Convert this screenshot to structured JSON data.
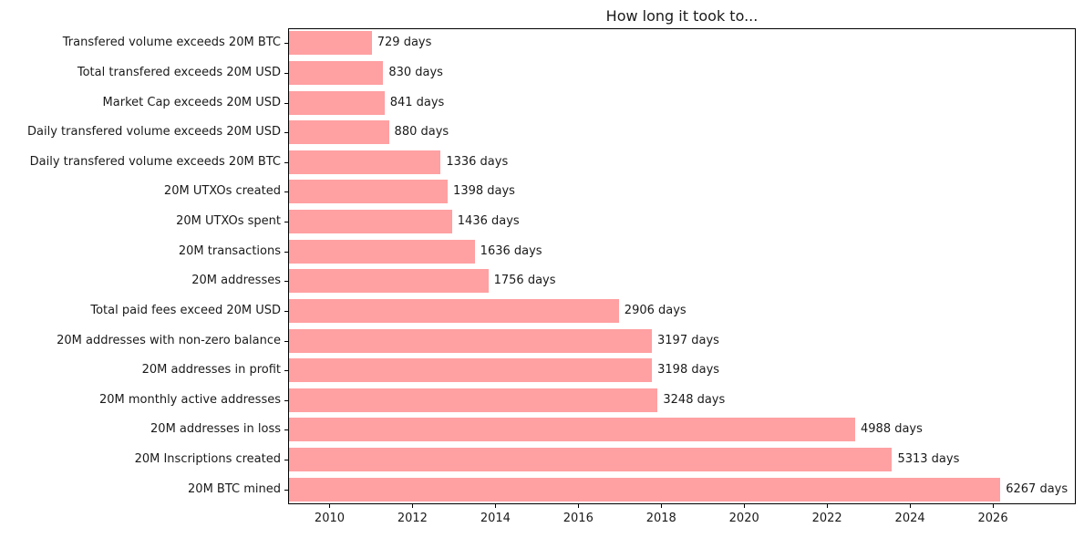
{
  "chart_data": {
    "type": "bar",
    "orientation": "horizontal",
    "title": "How long it took to...",
    "xlabel": "",
    "ylabel": "",
    "grid": false,
    "legend": false,
    "bar_color": "#ffa0a2",
    "text_color": "#1a1a1a",
    "spine_color": "#000000",
    "value_suffix": " days",
    "categories": [
      "Transfered volume exceeds 20M BTC",
      "Total transfered exceeds 20M USD",
      "Market Cap exceeds 20M USD",
      "Daily transfered volume exceeds 20M USD",
      "Daily transfered volume exceeds 20M BTC",
      "20M UTXOs created",
      "20M UTXOs spent",
      "20M transactions",
      "20M addresses",
      "Total paid fees exceed 20M USD",
      "20M addresses with non-zero balance",
      "20M addresses in profit",
      "20M monthly active addresses",
      "20M addresses in loss",
      "20M Inscriptions created",
      "20M BTC mined"
    ],
    "values_days": [
      729,
      830,
      841,
      880,
      1336,
      1398,
      1436,
      1636,
      1756,
      2906,
      3197,
      3198,
      3248,
      4988,
      5313,
      6267
    ],
    "value_labels": [
      "729 days",
      "830 days",
      "841 days",
      "880 days",
      "1336 days",
      "1398 days",
      "1436 days",
      "1636 days",
      "1756 days",
      "2906 days",
      "3197 days",
      "3198 days",
      "3248 days",
      "4988 days",
      "5313 days",
      "6267 days"
    ],
    "x_axis": {
      "start_year": 2009.0,
      "end_year": 2028.0,
      "days_per_year": 365.25,
      "tick_labels": [
        "2010",
        "2012",
        "2014",
        "2016",
        "2018",
        "2020",
        "2022",
        "2024",
        "2026"
      ],
      "tick_years": [
        2010,
        2012,
        2014,
        2016,
        2018,
        2020,
        2022,
        2024,
        2026
      ]
    }
  }
}
